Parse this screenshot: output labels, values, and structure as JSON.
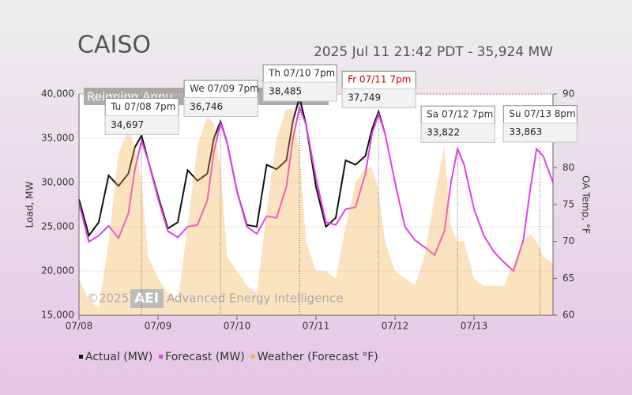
{
  "chart_data": {
    "type": "line",
    "title": "CAISO",
    "subtitle": "2025 Jul 11 21:42 PDT - 35,924 MW",
    "banner": "Reigning Annu",
    "watermark": [
      "©2025",
      "AEI",
      "Advanced Energy Intelligence"
    ],
    "y_label": "Load, MW",
    "y2_label": "OA Temp, °F",
    "x": [
      0,
      3,
      6,
      9,
      12,
      15,
      17,
      19,
      21,
      24,
      27,
      30,
      33,
      36,
      39,
      41,
      43,
      45,
      48,
      51,
      54,
      57,
      60,
      63,
      65,
      67,
      69,
      72,
      75,
      78,
      81,
      84,
      87,
      89,
      91,
      93,
      96,
      99,
      102,
      105,
      108,
      111,
      113,
      115,
      117,
      120,
      123,
      126,
      129,
      132,
      135,
      137,
      139,
      141,
      144
    ],
    "xlim": [
      0,
      144
    ],
    "xticks": [
      {
        "value": 0,
        "label": "07/08"
      },
      {
        "value": 24,
        "label": "07/09"
      },
      {
        "value": 48,
        "label": "07/10"
      },
      {
        "value": 72,
        "label": "07/11"
      },
      {
        "value": 96,
        "label": "07/12"
      },
      {
        "value": 120,
        "label": "07/13"
      }
    ],
    "ylim": [
      15000,
      40000
    ],
    "yticks": [
      {
        "value": 15000,
        "label": "15,000"
      },
      {
        "value": 20000,
        "label": "20,000"
      },
      {
        "value": 25000,
        "label": "25,000"
      },
      {
        "value": 30000,
        "label": "30,000"
      },
      {
        "value": 35000,
        "label": "35,000"
      },
      {
        "value": 40000,
        "label": "40,000"
      }
    ],
    "y2lim": [
      60,
      90
    ],
    "y2ticks": [
      60,
      65,
      70,
      75,
      80,
      85,
      90
    ],
    "series": [
      {
        "name": "Actual (MW)",
        "color": "#111111",
        "values": [
          28100,
          24000,
          25500,
          30800,
          29600,
          31000,
          34000,
          35300,
          32500,
          28500,
          24800,
          25500,
          31400,
          30200,
          31000,
          35000,
          36900,
          34500,
          29000,
          25200,
          25000,
          32000,
          31500,
          32500,
          37000,
          39600,
          36500,
          29500,
          25000,
          26000,
          32500,
          32000,
          33000,
          36000,
          38000,
          35500,
          null,
          null,
          null,
          null,
          null,
          null,
          null,
          null,
          null,
          null,
          null,
          null,
          null,
          null,
          null,
          null,
          null,
          null,
          null
        ]
      },
      {
        "name": "Forecast (MW)",
        "color": "#e040e8",
        "values": [
          27600,
          23300,
          24000,
          25100,
          23700,
          26500,
          31500,
          34700,
          32500,
          28200,
          24500,
          23800,
          25000,
          25200,
          28000,
          33500,
          36700,
          34500,
          29000,
          25000,
          24200,
          26200,
          26000,
          29500,
          35000,
          38500,
          36500,
          30500,
          25500,
          25200,
          27000,
          27200,
          31000,
          35500,
          37700,
          35500,
          30000,
          25000,
          23500,
          22700,
          21800,
          24500,
          30000,
          33800,
          32000,
          27000,
          24000,
          22200,
          21000,
          20000,
          23500,
          29000,
          33800,
          33000,
          30000
        ]
      },
      {
        "name": "Weather (Forecast °F)",
        "color": "#f5b04a",
        "axis": "y2",
        "values": [
          65,
          62,
          61,
          70,
          82,
          85,
          83,
          78,
          68,
          65,
          63,
          62,
          72,
          83,
          87,
          86,
          80,
          68,
          66,
          64,
          63,
          74,
          84,
          88,
          88,
          82,
          70,
          66,
          66,
          65,
          72,
          78,
          80,
          80,
          77,
          70,
          66,
          65,
          64,
          68,
          76,
          83,
          72,
          70,
          70,
          65,
          64,
          64,
          64,
          67,
          70,
          71,
          70,
          68,
          67
        ]
      }
    ],
    "annotations": [
      {
        "text": "Tu 07/08 7pm",
        "x": 19,
        "value": 34697,
        "value_label": "34,697"
      },
      {
        "text": "We 07/09 7pm",
        "x": 43,
        "value": 36746,
        "value_label": "36,746"
      },
      {
        "text": "Th 07/10 7pm",
        "x": 67,
        "value": 38485,
        "value_label": "38,485"
      },
      {
        "text": "Fr 07/11 7pm",
        "x": 91,
        "value": 37749,
        "value_label": "37,749",
        "color": "#cc0000"
      },
      {
        "text": "Sa 07/12 7pm",
        "x": 115,
        "value": 33822,
        "value_label": "33,822"
      },
      {
        "text": "Su 07/13 8pm",
        "x": 140,
        "value": 33863,
        "value_label": "33,863"
      }
    ]
  }
}
